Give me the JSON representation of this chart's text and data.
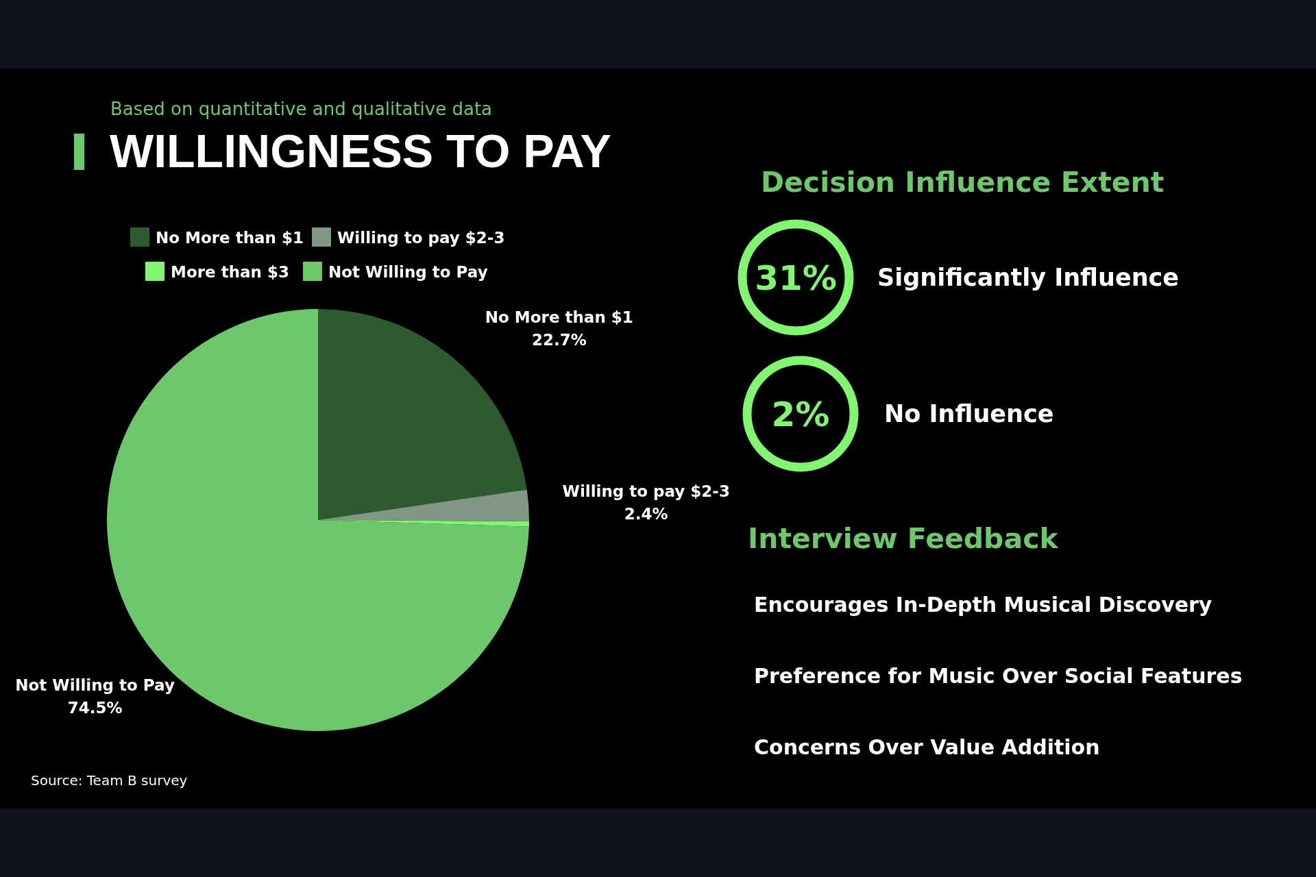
{
  "chart_data": [
    {
      "type": "pie",
      "title": "WILLINGNESS TO PAY",
      "subtitle": "Based on quantitative and qualitative data",
      "categories": [
        "No More than $1",
        "Willing to pay $2-3",
        "More than $3",
        "Not Willing to Pay"
      ],
      "values": [
        22.7,
        2.4,
        0.4,
        74.5
      ],
      "colors": [
        "#2f5a2f",
        "#7f9784",
        "#80f76e",
        "#6dc86b"
      ],
      "value_labels": [
        "22.7%",
        "2.4%",
        null,
        "74.5%"
      ],
      "legend": "top",
      "annotations": [
        "Source: Team B survey"
      ]
    },
    {
      "type": "other",
      "title": "Decision Influence Extent",
      "annotations": [
        "31%",
        "Significantly Influence",
        "2%",
        "No Influence"
      ]
    },
    {
      "type": "other",
      "title": "Interview Feedback",
      "annotations": [
        "Encourages In-Depth Musical Discovery",
        "Preference for Music Over Social Features",
        "Concerns Over Value Addition"
      ]
    }
  ]
}
